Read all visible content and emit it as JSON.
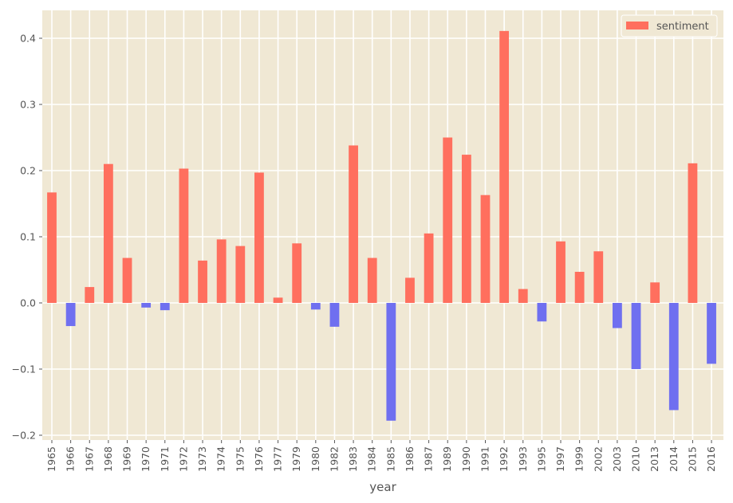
{
  "chart_data": {
    "type": "bar",
    "xlabel": "year",
    "ylabel": "",
    "ylim": [
      -0.21,
      0.44
    ],
    "yticks": [
      -0.2,
      -0.1,
      0.0,
      0.1,
      0.2,
      0.3,
      0.4
    ],
    "ytick_labels": [
      "−0.2",
      "−0.1",
      "0.0",
      "0.1",
      "0.2",
      "0.3",
      "0.4"
    ],
    "grid": true,
    "legend_position": "top-right",
    "colors": {
      "positive": "#ff6f5e",
      "negative": "#6f6ff0",
      "background": "#f0e8d4",
      "grid": "#ffffff",
      "text": "#555555"
    },
    "categories": [
      "1965",
      "1966",
      "1967",
      "1968",
      "1969",
      "1970",
      "1971",
      "1972",
      "1973",
      "1974",
      "1975",
      "1976",
      "1977",
      "1979",
      "1980",
      "1982",
      "1983",
      "1984",
      "1985",
      "1986",
      "1987",
      "1989",
      "1990",
      "1991",
      "1992",
      "1993",
      "1995",
      "1997",
      "1999",
      "2002",
      "2003",
      "2010",
      "2013",
      "2014",
      "2015",
      "2016"
    ],
    "series": [
      {
        "name": "sentiment",
        "values": [
          0.167,
          -0.035,
          0.024,
          0.21,
          0.068,
          -0.007,
          -0.011,
          0.203,
          0.064,
          0.096,
          0.086,
          0.197,
          0.008,
          0.09,
          -0.01,
          -0.036,
          0.238,
          0.068,
          -0.178,
          0.038,
          0.105,
          0.25,
          0.224,
          0.163,
          0.411,
          0.021,
          -0.028,
          0.093,
          0.047,
          0.078,
          -0.038,
          -0.1,
          0.031,
          -0.162,
          0.211,
          -0.092
        ]
      }
    ]
  }
}
